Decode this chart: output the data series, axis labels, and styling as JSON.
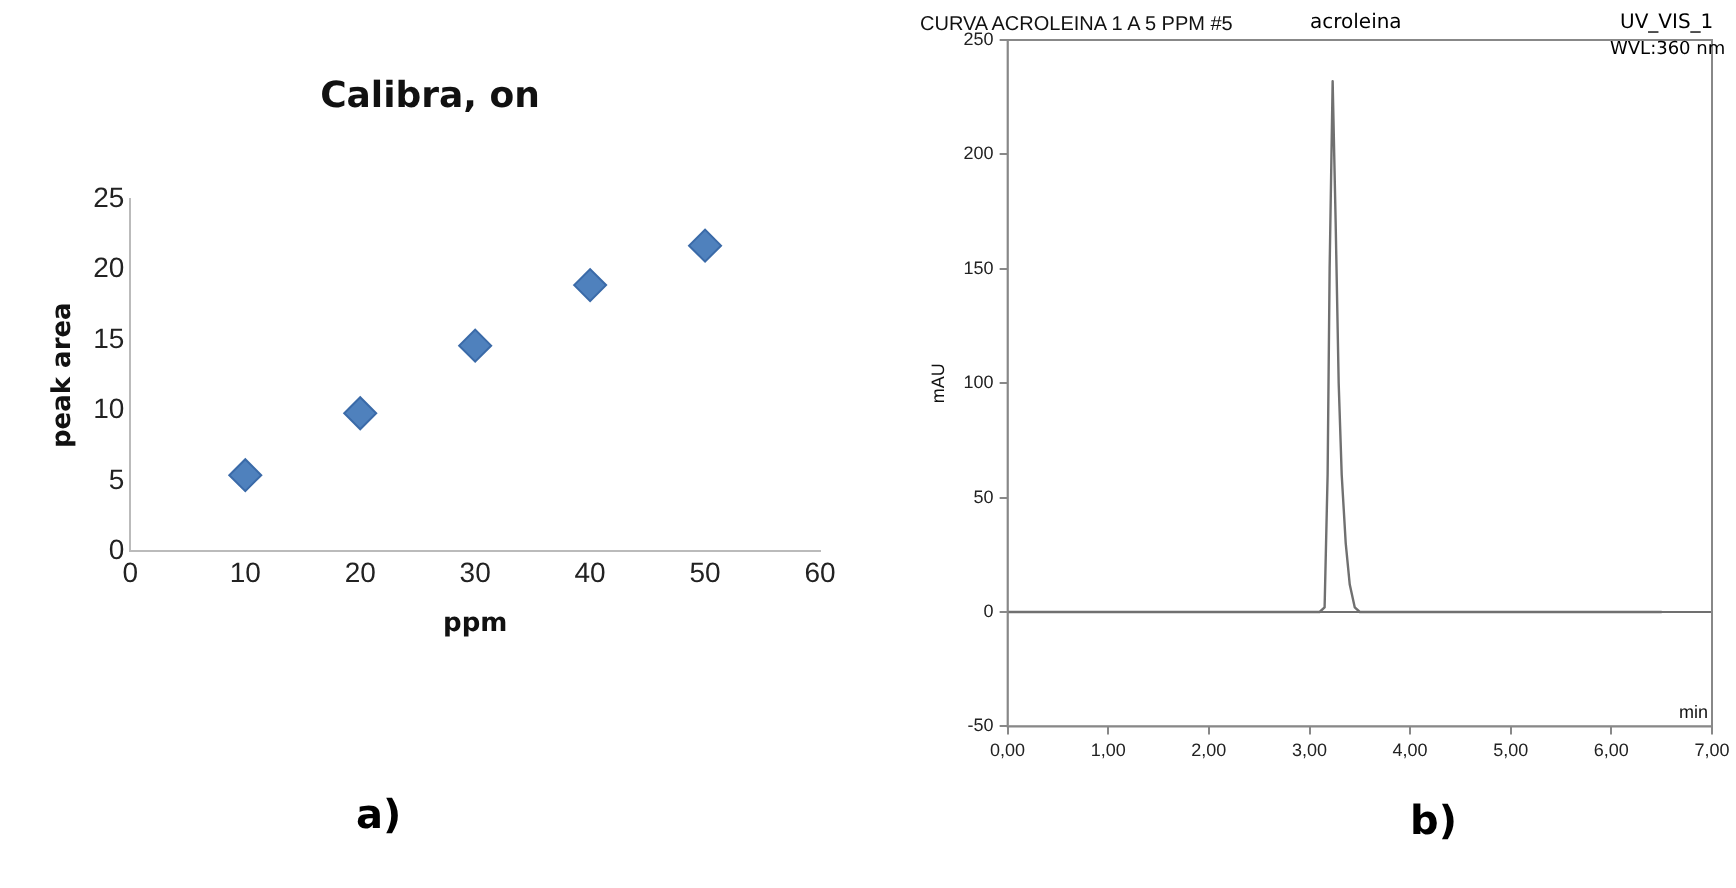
{
  "chart_data": [
    {
      "type": "scatter",
      "title": "Calibra, on",
      "xlabel": "ppm",
      "ylabel": "peak area",
      "x": [
        10,
        20,
        30,
        40,
        50
      ],
      "series": [
        {
          "color": "#4f81bd",
          "values": [
            5.4,
            9.8,
            14.6,
            18.9,
            21.7
          ]
        }
      ],
      "xlim": [
        0,
        60
      ],
      "xticks": [
        0,
        10,
        20,
        30,
        40,
        50,
        60
      ],
      "ylim": [
        0,
        25
      ],
      "yticks": [
        0,
        5,
        10,
        15,
        20,
        25
      ],
      "grid": false,
      "legend": false,
      "marker": "diamond",
      "annotations": [
        "a)"
      ]
    },
    {
      "type": "line",
      "title": "CURVA ACROLEINA 1 A 5 PPM #5",
      "xlabel": "min",
      "ylabel": "mAU",
      "series": [
        {
          "color": "#707070",
          "x": [
            0,
            3.1,
            3.15,
            3.18,
            3.2,
            3.23,
            3.26,
            3.29,
            3.32,
            3.36,
            3.4,
            3.45,
            3.5,
            6.5
          ],
          "values": [
            0,
            0,
            2,
            60,
            150,
            232,
            170,
            100,
            60,
            30,
            12,
            2,
            0,
            0
          ]
        }
      ],
      "xlim": [
        0,
        7
      ],
      "xticks": [
        {
          "value": 0,
          "label": "0,00"
        },
        {
          "value": 1,
          "label": "1,00"
        },
        {
          "value": 2,
          "label": "2,00"
        },
        {
          "value": 3,
          "label": "3,00"
        },
        {
          "value": 4,
          "label": "4,00"
        },
        {
          "value": 5,
          "label": "5,00"
        },
        {
          "value": 6,
          "label": "6,00"
        },
        {
          "value": 7,
          "label": "7,00"
        }
      ],
      "ylim": [
        -50,
        250
      ],
      "yticks": [
        -50,
        0,
        50,
        100,
        150,
        200,
        250
      ],
      "grid": false,
      "legend": false,
      "marker": "none",
      "line_style": "solid",
      "ref_lines": [
        {
          "axis": "y",
          "value": 0,
          "color": "#707070"
        }
      ],
      "annotations": [
        "acroleina",
        "UV_VIS_1",
        "WVL:360 nm",
        "b)"
      ]
    }
  ]
}
